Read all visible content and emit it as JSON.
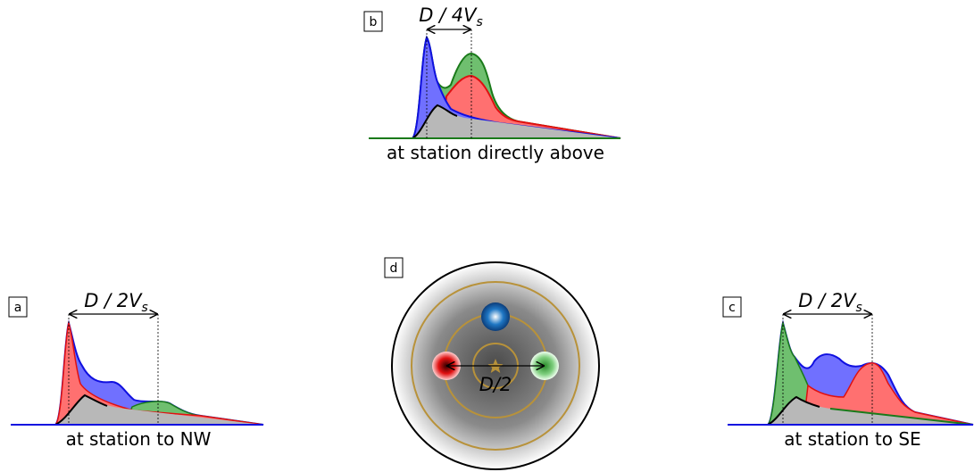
{
  "panels": [
    {
      "id": "b",
      "interval": {
        "main": "D / 4V",
        "sub": "s"
      },
      "caption": "at station directly above"
    },
    {
      "id": "a",
      "interval": {
        "main": "D / 2V",
        "sub": "s"
      },
      "caption": "at station to NW"
    },
    {
      "id": "c",
      "interval": {
        "main": "D / 2V",
        "sub": "s"
      },
      "caption": "at station to SE"
    }
  ],
  "source_panel": {
    "id": "d",
    "separation": "D/2"
  }
}
